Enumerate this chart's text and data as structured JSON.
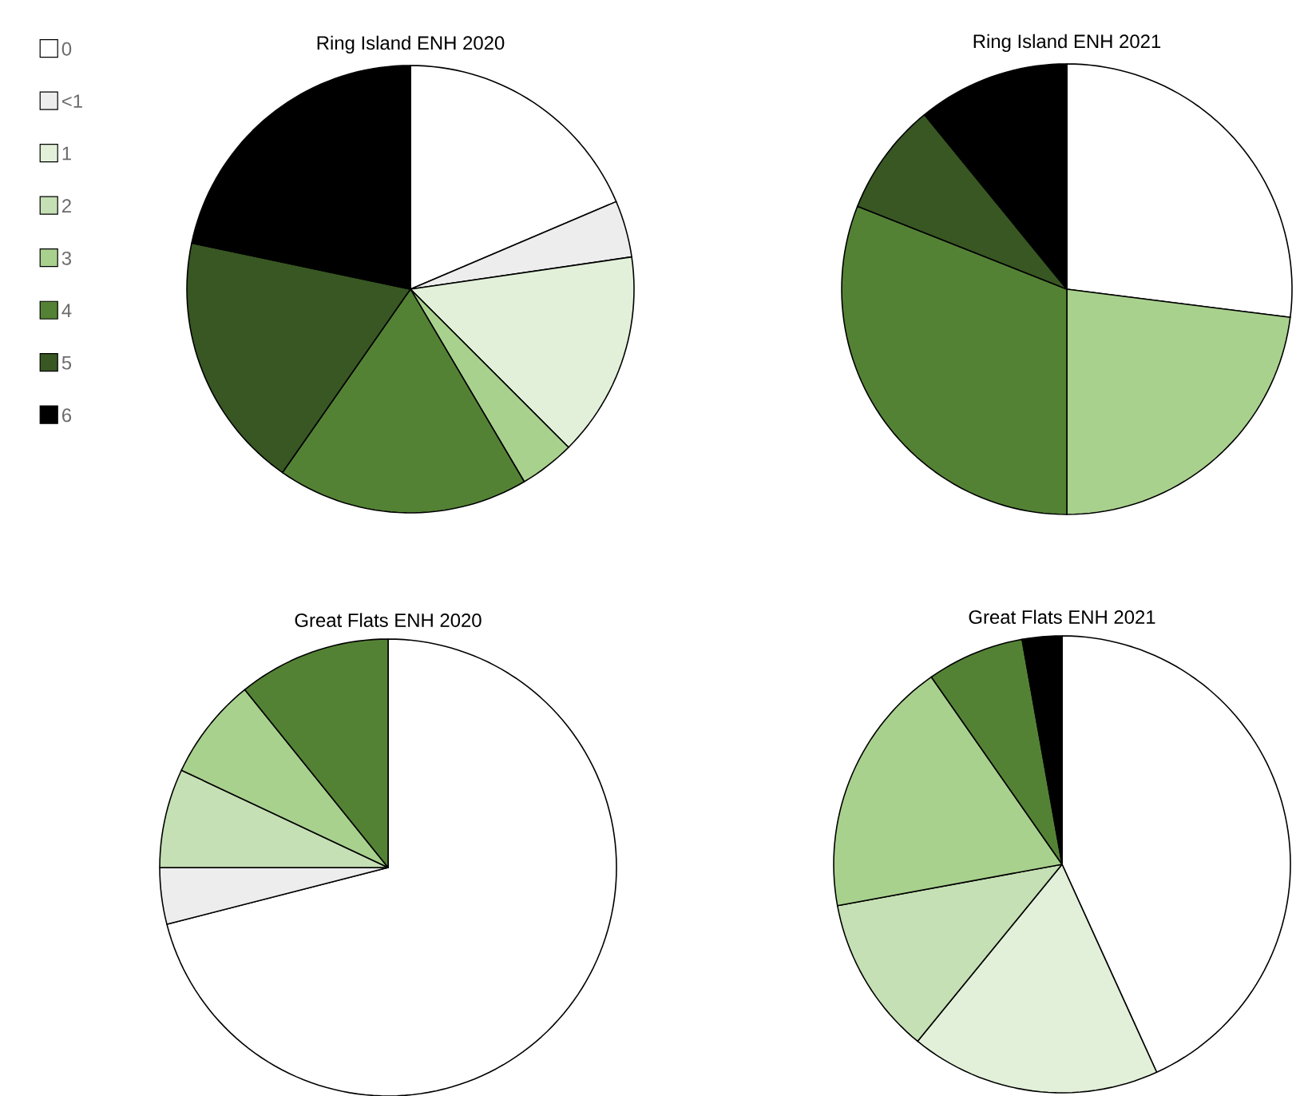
{
  "chart_data": [
    {
      "type": "pie",
      "title": "Ring Island ENH 2020",
      "legend": "left",
      "categories": [
        "0",
        "<1",
        "1",
        "2",
        "3",
        "4",
        "5",
        "6"
      ],
      "values": [
        18.6,
        4.1,
        14.8,
        0,
        4.0,
        18.2,
        18.6,
        21.7
      ],
      "colors": [
        "#ffffff",
        "#ededed",
        "#e2f0d9",
        "#c5e0b4",
        "#a9d18e",
        "#548235",
        "#385723",
        "#000000"
      ]
    },
    {
      "type": "pie",
      "title": "Ring Island ENH 2021",
      "categories": [
        null,
        null,
        null,
        null,
        null,
        null,
        null,
        null
      ],
      "values": [
        27.0,
        0,
        0,
        0,
        23.0,
        31.0,
        8.1,
        10.9
      ],
      "colors": [
        "#ffffff",
        "#ededed",
        "#e2f0d9",
        "#c5e0b4",
        "#a9d18e",
        "#548235",
        "#385723",
        "#000000"
      ]
    },
    {
      "type": "pie",
      "title": "Great Flats ENH 2020",
      "categories": [
        null,
        null,
        null,
        null,
        null,
        null,
        null,
        null
      ],
      "values": [
        71.0,
        4.0,
        0,
        7.0,
        7.2,
        10.8,
        0,
        0
      ],
      "colors": [
        "#ffffff",
        "#ededed",
        "#e2f0d9",
        "#c5e0b4",
        "#a9d18e",
        "#548235",
        "#385723",
        "#000000"
      ]
    },
    {
      "type": "pie",
      "title": "Great Flats ENH 2021",
      "categories": [
        null,
        null,
        null,
        null,
        null,
        null,
        null,
        null
      ],
      "values": [
        43.2,
        0,
        17.7,
        11.2,
        18.2,
        6.9,
        0,
        2.8
      ],
      "colors": [
        "#ffffff",
        "#ededed",
        "#e2f0d9",
        "#c5e0b4",
        "#a9d18e",
        "#548235",
        "#385723",
        "#000000"
      ]
    }
  ]
}
